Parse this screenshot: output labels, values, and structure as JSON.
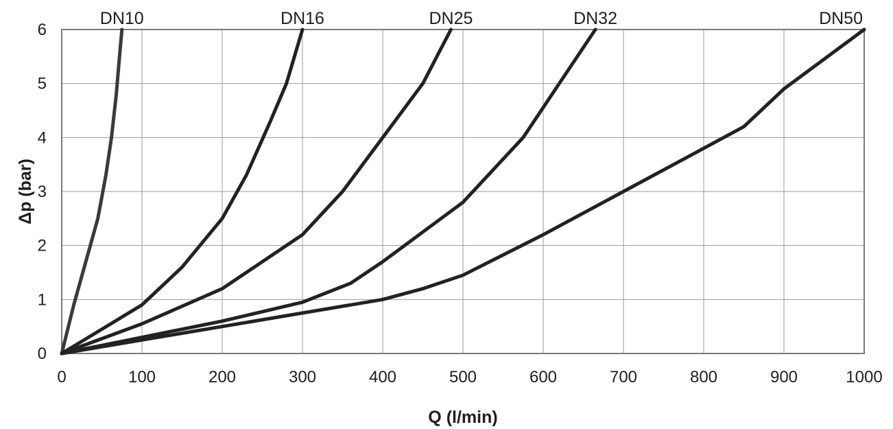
{
  "chart_data": {
    "type": "line",
    "title": "",
    "xlabel": "Q (l/min)",
    "ylabel": "Δp (bar)",
    "xlim": [
      0,
      1000
    ],
    "ylim": [
      0,
      6
    ],
    "x_ticks": [
      0,
      100,
      200,
      300,
      400,
      500,
      600,
      700,
      800,
      900,
      1000
    ],
    "y_ticks": [
      0,
      1,
      2,
      3,
      4,
      5,
      6
    ],
    "grid": true,
    "legend": "none",
    "series": [
      {
        "name": "DN10",
        "color": "#3a3a3a",
        "x": [
          0,
          15,
          30,
          45,
          55,
          62,
          68,
          72,
          75
        ],
        "y": [
          0,
          0.9,
          1.7,
          2.5,
          3.3,
          4.0,
          4.8,
          5.5,
          6.0
        ]
      },
      {
        "name": "DN16",
        "color": "#222222",
        "x": [
          0,
          50,
          100,
          150,
          200,
          230,
          260,
          280,
          300
        ],
        "y": [
          0,
          0.45,
          0.9,
          1.6,
          2.5,
          3.3,
          4.3,
          5.0,
          6.0
        ]
      },
      {
        "name": "DN25",
        "color": "#222222",
        "x": [
          0,
          100,
          200,
          300,
          350,
          400,
          450,
          485
        ],
        "y": [
          0,
          0.55,
          1.2,
          2.2,
          3.0,
          4.0,
          5.0,
          6.0
        ]
      },
      {
        "name": "DN32",
        "color": "#222222",
        "x": [
          0,
          100,
          200,
          300,
          360,
          400,
          500,
          575,
          620,
          665
        ],
        "y": [
          0,
          0.3,
          0.6,
          0.95,
          1.3,
          1.7,
          2.8,
          4.0,
          5.0,
          6.0
        ]
      },
      {
        "name": "DN50",
        "color": "#222222",
        "x": [
          0,
          100,
          200,
          300,
          400,
          450,
          500,
          600,
          700,
          800,
          850,
          900,
          1000
        ],
        "y": [
          0,
          0.25,
          0.5,
          0.75,
          1.0,
          1.2,
          1.45,
          2.2,
          3.0,
          3.8,
          4.2,
          4.9,
          6.0
        ]
      }
    ]
  }
}
